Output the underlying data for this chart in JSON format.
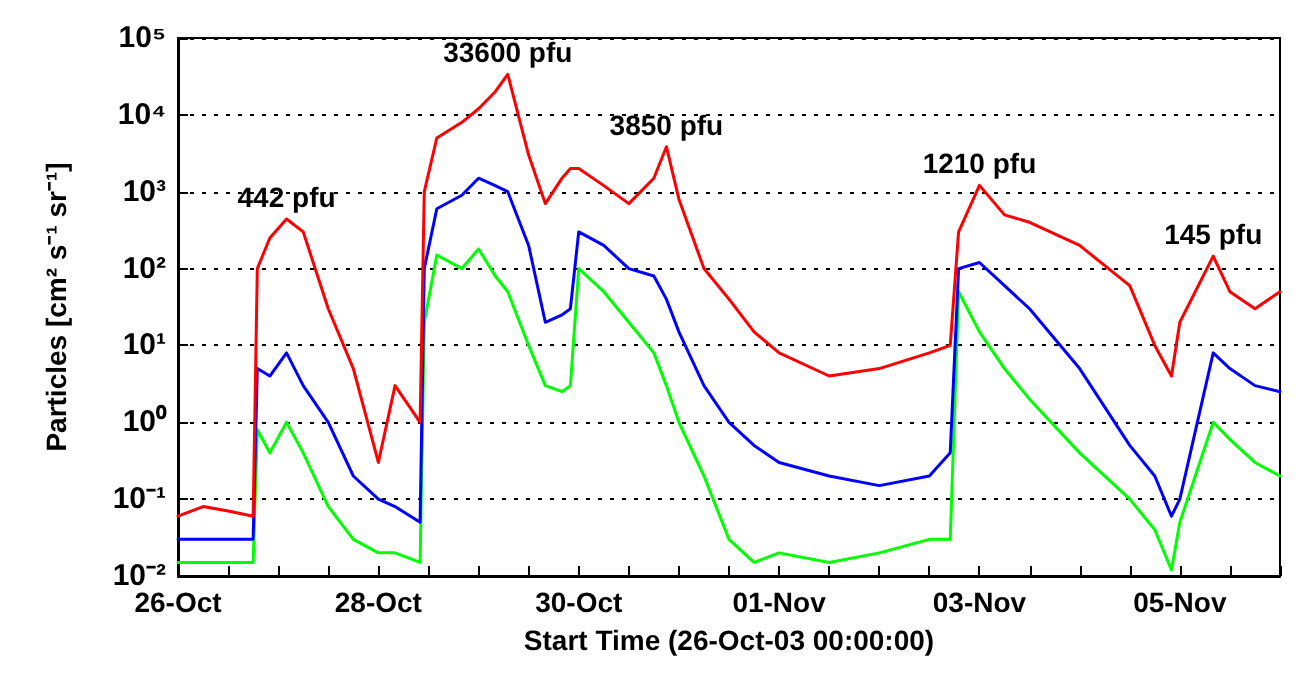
{
  "chart_data": {
    "type": "line",
    "xlabel": "Start Time (26-Oct-03 00:00:00)",
    "ylabel": "Particles [cm² s⁻¹ sr⁻¹]",
    "log": "y",
    "grid": "y",
    "marker": "none",
    "line_style": "solid",
    "xlim": [
      "--10-26T00:00",
      "--11-06T00:00"
    ],
    "ylim": [
      0.01,
      100000
    ],
    "yticks": [
      {
        "value": 0.01,
        "label": "10⁻²"
      },
      {
        "value": 0.1,
        "label": "10⁻¹"
      },
      {
        "value": 1,
        "label": "10⁰"
      },
      {
        "value": 10,
        "label": "10¹"
      },
      {
        "value": 100,
        "label": "10²"
      },
      {
        "value": 1000,
        "label": "10³"
      },
      {
        "value": 10000,
        "label": "10⁴"
      },
      {
        "value": 100000,
        "label": "10⁵"
      }
    ],
    "xticks": [
      {
        "value": "--10-26T00:00",
        "label": "26-Oct"
      },
      {
        "value": "--10-26T12:00",
        "label": null
      },
      {
        "value": "--10-27T00:00",
        "label": null
      },
      {
        "value": "--10-27T12:00",
        "label": null
      },
      {
        "value": "--10-28T00:00",
        "label": "28-Oct"
      },
      {
        "value": "--10-28T12:00",
        "label": null
      },
      {
        "value": "--10-29T00:00",
        "label": null
      },
      {
        "value": "--10-29T12:00",
        "label": null
      },
      {
        "value": "--10-30T00:00",
        "label": "30-Oct"
      },
      {
        "value": "--10-30T12:00",
        "label": null
      },
      {
        "value": "--10-31T00:00",
        "label": null
      },
      {
        "value": "--10-31T12:00",
        "label": null
      },
      {
        "value": "--11-01T00:00",
        "label": "01-Nov"
      },
      {
        "value": "--11-01T12:00",
        "label": null
      },
      {
        "value": "--11-02T00:00",
        "label": null
      },
      {
        "value": "--11-02T12:00",
        "label": null
      },
      {
        "value": "--11-03T00:00",
        "label": "03-Nov"
      },
      {
        "value": "--11-03T12:00",
        "label": null
      },
      {
        "value": "--11-04T00:00",
        "label": null
      },
      {
        "value": "--11-04T12:00",
        "label": null
      },
      {
        "value": "--11-05T00:00",
        "label": "05-Nov"
      },
      {
        "value": "--11-05T12:00",
        "label": null
      },
      {
        "value": "--11-06T00:00",
        "label": null
      }
    ],
    "x": [
      "--10-26T00:00",
      "--10-26T06:00",
      "--10-26T12:00",
      "--10-26T18:00",
      "--10-26T19:00",
      "--10-26T22:00",
      "--10-27T02:00",
      "--10-27T06:00",
      "--10-27T12:00",
      "--10-27T18:00",
      "--10-28T00:00",
      "--10-28T04:00",
      "--10-28T10:00",
      "--10-28T11:00",
      "--10-28T14:00",
      "--10-28T20:00",
      "--10-29T00:00",
      "--10-29T04:00",
      "--10-29T07:00",
      "--10-29T12:00",
      "--10-29T16:00",
      "--10-29T20:00",
      "--10-29T22:00",
      "--10-30T00:00",
      "--10-30T06:00",
      "--10-30T12:00",
      "--10-30T18:00",
      "--10-30T21:00",
      "--10-31T00:00",
      "--10-31T06:00",
      "--10-31T12:00",
      "--10-31T18:00",
      "--11-01T00:00",
      "--11-01T12:00",
      "--11-02T00:00",
      "--11-02T12:00",
      "--11-02T17:00",
      "--11-02T19:00",
      "--11-03T00:00",
      "--11-03T06:00",
      "--11-03T12:00",
      "--11-04T00:00",
      "--11-04T12:00",
      "--11-04T18:00",
      "--11-04T22:00",
      "--11-05T00:00",
      "--11-05T08:00",
      "--11-05T12:00",
      "--11-05T18:00",
      "--11-06T00:00"
    ],
    "series": [
      {
        "color": "#ff0000",
        "values": [
          0.06,
          0.08,
          0.07,
          0.06,
          100,
          250,
          442,
          300,
          30,
          5,
          0.3,
          3,
          1,
          1000,
          5000,
          8000,
          12000,
          20000,
          33600,
          3000,
          700,
          1500,
          2000,
          2000,
          1200,
          700,
          1500,
          3850,
          800,
          100,
          40,
          15,
          8,
          4,
          5,
          8,
          10,
          300,
          1210,
          500,
          400,
          200,
          60,
          10,
          4,
          20,
          145,
          50,
          30,
          50
        ]
      },
      {
        "color": "#0000ff",
        "values": [
          0.03,
          0.03,
          0.03,
          0.03,
          5,
          4,
          8,
          3,
          1,
          0.2,
          0.1,
          0.08,
          0.05,
          100,
          600,
          900,
          1500,
          1200,
          1000,
          200,
          20,
          25,
          30,
          300,
          200,
          100,
          80,
          40,
          15,
          3,
          1,
          0.5,
          0.3,
          0.2,
          0.15,
          0.2,
          0.4,
          100,
          120,
          60,
          30,
          5,
          0.5,
          0.2,
          0.06,
          0.1,
          8,
          5,
          3,
          2.5
        ]
      },
      {
        "color": "#00ff00",
        "values": [
          0.015,
          0.015,
          0.015,
          0.015,
          0.8,
          0.4,
          1,
          0.4,
          0.08,
          0.03,
          0.02,
          0.02,
          0.015,
          20,
          150,
          100,
          180,
          80,
          50,
          10,
          3,
          2.5,
          3,
          100,
          50,
          20,
          8,
          3,
          1,
          0.2,
          0.03,
          0.015,
          0.02,
          0.015,
          0.02,
          0.03,
          0.03,
          50,
          15,
          5,
          2,
          0.4,
          0.1,
          0.04,
          0.012,
          0.05,
          1,
          0.6,
          0.3,
          0.2
        ]
      }
    ],
    "annotations": [
      {
        "text": "442 pfu",
        "x": "--10-27T02:00",
        "y": 442
      },
      {
        "text": "33600 pfu",
        "x": "--10-29T07:00",
        "y": 33600
      },
      {
        "text": "3850 pfu",
        "x": "--10-30T21:00",
        "y": 3850
      },
      {
        "text": "1210 pfu",
        "x": "--11-03T00:00",
        "y": 1210
      },
      {
        "text": "145 pfu",
        "x": "--11-05T08:00",
        "y": 145
      }
    ]
  }
}
